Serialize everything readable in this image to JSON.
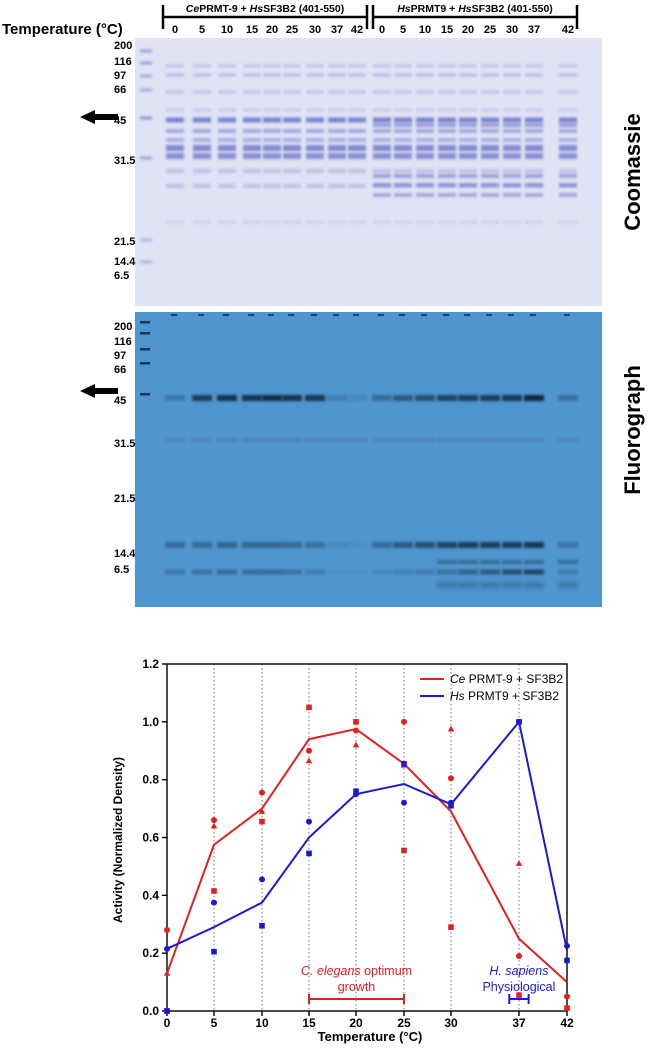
{
  "gel": {
    "temperature_label": "Temperature (°C)",
    "group1_label_parts": [
      {
        "text": "Ce",
        "italic": true
      },
      {
        "text": "PRMT-9 + ",
        "italic": false
      },
      {
        "text": "Hs",
        "italic": true
      },
      {
        "text": "SF3B2 (401-550)",
        "italic": false
      }
    ],
    "group2_label_parts": [
      {
        "text": "Hs",
        "italic": true
      },
      {
        "text": "PRMT9 + ",
        "italic": false
      },
      {
        "text": "Hs",
        "italic": true
      },
      {
        "text": "SF3B2 (401-550)",
        "italic": false
      }
    ],
    "group1_lanes": [
      "0",
      "5",
      "10",
      "15",
      "20",
      "25",
      "30",
      "37",
      "42"
    ],
    "group2_lanes": [
      "0",
      "5",
      "10",
      "15",
      "20",
      "25",
      "30",
      "37",
      "42"
    ],
    "coomassie": {
      "title": "Coomassie",
      "markers": [
        "200",
        "116",
        "97",
        "66",
        "45",
        "31.5",
        "21.5",
        "14.4",
        "6.5"
      ],
      "bg_color": "#dfe3f4",
      "band_color": "#5a63c2"
    },
    "fluorograph": {
      "title": "Fluorograph",
      "markers": [
        "200",
        "116",
        "97",
        "66",
        "45",
        "31.5",
        "21.5",
        "14.4",
        "6.5"
      ],
      "bg_color": "#4f95cf",
      "band_color": "#0a2036",
      "band45_intensity_group1": [
        0.25,
        0.75,
        0.85,
        0.85,
        0.9,
        0.85,
        0.8,
        0.2,
        0.1
      ],
      "band45_intensity_group2": [
        0.35,
        0.5,
        0.6,
        0.7,
        0.75,
        0.75,
        0.8,
        0.95,
        0.3
      ]
    }
  },
  "chart_data": {
    "type": "line",
    "xlabel": "Temperature (°C)",
    "ylabel": "Activity (Normalized Density)",
    "x": [
      0,
      5,
      10,
      15,
      20,
      25,
      30,
      37,
      42
    ],
    "xlim": [
      0,
      42
    ],
    "ylim": [
      0,
      1.2
    ],
    "yticks": [
      "0.0",
      "0.2",
      "0.4",
      "0.6",
      "0.8",
      "1.0",
      "1.2"
    ],
    "grid": "vertical dotted at each x",
    "legend_position": "top-right",
    "series": [
      {
        "name": "Ce PRMT-9 + SF3B2",
        "name_parts": [
          {
            "text": "Ce",
            "italic": true
          },
          {
            "text": " PRMT-9 + SF3B2",
            "italic": false
          }
        ],
        "color": "#e32020",
        "mean": [
          0.13,
          0.575,
          0.7,
          0.94,
          0.975,
          0.855,
          0.69,
          0.25,
          0.1
        ],
        "squares": [
          0.0,
          0.415,
          0.655,
          1.05,
          1.0,
          0.555,
          0.29,
          0.055,
          0.01
        ],
        "circles": [
          0.28,
          0.66,
          0.755,
          0.9,
          0.97,
          1.0,
          0.805,
          0.19,
          0.05
        ],
        "triangles": [
          0.13,
          0.64,
          0.69,
          0.865,
          0.92,
          0.85,
          0.975,
          0.51,
          0.01
        ]
      },
      {
        "name": "Hs PRMT9 + SF3B2",
        "name_parts": [
          {
            "text": "Hs",
            "italic": true
          },
          {
            "text": " PRMT9 + SF3B2",
            "italic": false
          }
        ],
        "color": "#1a1ad6",
        "mean": [
          0.215,
          0.29,
          0.375,
          0.6,
          0.75,
          0.785,
          0.715,
          1.0,
          0.21
        ],
        "squares": [
          0.0,
          0.205,
          0.295,
          0.545,
          0.76,
          0.855,
          0.71,
          1.0,
          0.175
        ],
        "circles": [
          0.215,
          0.375,
          0.455,
          0.655,
          0.75,
          0.72,
          0.72,
          1.0,
          0.225
        ]
      }
    ],
    "annotations": [
      {
        "id": "ce",
        "line1_parts": [
          {
            "text": "C. elegans",
            "italic": true
          },
          {
            "text": " optimum",
            "italic": false
          }
        ],
        "line2": "growth",
        "x_range": [
          15,
          25
        ],
        "color": "#e32020"
      },
      {
        "id": "hs",
        "line1_parts": [
          {
            "text": "H. sapiens",
            "italic": true
          }
        ],
        "line2": "Physiological",
        "x_range": [
          36,
          38
        ],
        "color": "#1a1ad6"
      }
    ]
  }
}
